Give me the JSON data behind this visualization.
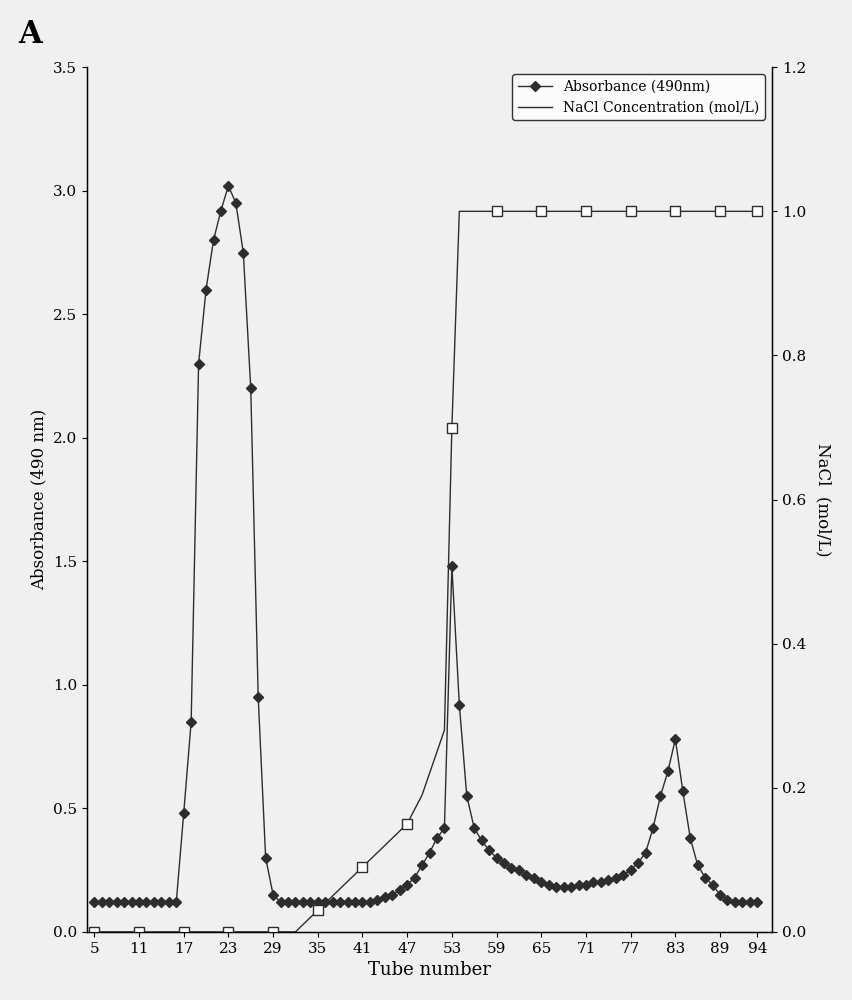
{
  "title_label": "A",
  "xlabel": "Tube number",
  "ylabel_left": "Absorbance (490 nm)",
  "ylabel_right": "NaCl  (mol/L)",
  "legend1": "Absorbance (490nm)",
  "legend2": "NaCl Concentration (mol/L)",
  "xticks": [
    5,
    11,
    17,
    23,
    29,
    35,
    41,
    47,
    53,
    59,
    65,
    71,
    77,
    83,
    89,
    94
  ],
  "ylim_left": [
    0,
    3.5
  ],
  "ylim_right": [
    0.0,
    1.2
  ],
  "yticks_left": [
    0.0,
    0.5,
    1.0,
    1.5,
    2.0,
    2.5,
    3.0,
    3.5
  ],
  "yticks_right": [
    0.0,
    0.2,
    0.4,
    0.6,
    0.8,
    1.0,
    1.2
  ],
  "absorbance_x": [
    5,
    6,
    7,
    8,
    9,
    10,
    11,
    12,
    13,
    14,
    15,
    16,
    17,
    18,
    19,
    20,
    21,
    22,
    23,
    24,
    25,
    26,
    27,
    28,
    29,
    30,
    31,
    32,
    33,
    34,
    35,
    36,
    37,
    38,
    39,
    40,
    41,
    42,
    43,
    44,
    45,
    46,
    47,
    48,
    49,
    50,
    51,
    52,
    53,
    54,
    55,
    56,
    57,
    58,
    59,
    60,
    61,
    62,
    63,
    64,
    65,
    66,
    67,
    68,
    69,
    70,
    71,
    72,
    73,
    74,
    75,
    76,
    77,
    78,
    79,
    80,
    81,
    82,
    83,
    84,
    85,
    86,
    87,
    88,
    89,
    90,
    91,
    92,
    93,
    94
  ],
  "absorbance_y": [
    0.12,
    0.12,
    0.12,
    0.12,
    0.12,
    0.12,
    0.12,
    0.12,
    0.12,
    0.12,
    0.12,
    0.12,
    0.48,
    0.85,
    2.3,
    2.6,
    2.8,
    2.92,
    3.02,
    2.95,
    2.75,
    2.2,
    0.95,
    0.3,
    0.15,
    0.12,
    0.12,
    0.12,
    0.12,
    0.12,
    0.12,
    0.12,
    0.12,
    0.12,
    0.12,
    0.12,
    0.12,
    0.12,
    0.13,
    0.14,
    0.15,
    0.17,
    0.19,
    0.22,
    0.27,
    0.32,
    0.38,
    0.42,
    1.48,
    0.92,
    0.55,
    0.42,
    0.37,
    0.33,
    0.3,
    0.28,
    0.26,
    0.25,
    0.23,
    0.22,
    0.2,
    0.19,
    0.18,
    0.18,
    0.18,
    0.19,
    0.19,
    0.2,
    0.2,
    0.21,
    0.22,
    0.23,
    0.25,
    0.28,
    0.32,
    0.42,
    0.55,
    0.65,
    0.78,
    0.57,
    0.38,
    0.27,
    0.22,
    0.19,
    0.15,
    0.13,
    0.12,
    0.12,
    0.12,
    0.12
  ],
  "nacl_x": [
    5,
    6,
    7,
    8,
    9,
    10,
    11,
    12,
    13,
    14,
    15,
    16,
    17,
    18,
    19,
    20,
    21,
    22,
    23,
    24,
    25,
    26,
    27,
    28,
    29,
    30,
    31,
    32,
    33,
    34,
    35,
    36,
    37,
    38,
    39,
    40,
    41,
    42,
    43,
    44,
    45,
    46,
    47,
    48,
    49,
    50,
    51,
    52,
    53,
    54,
    55,
    56,
    57,
    58,
    59,
    60,
    61,
    62,
    63,
    64,
    65,
    66,
    67,
    68,
    69,
    70,
    71,
    72,
    73,
    74,
    75,
    76,
    77,
    78,
    79,
    80,
    81,
    82,
    83,
    84,
    85,
    86,
    87,
    88,
    89,
    90,
    91,
    92,
    93,
    94
  ],
  "nacl_y": [
    0.0,
    0.0,
    0.0,
    0.0,
    0.0,
    0.0,
    0.0,
    0.0,
    0.0,
    0.0,
    0.0,
    0.0,
    0.0,
    0.0,
    0.0,
    0.0,
    0.0,
    0.0,
    0.0,
    0.0,
    0.0,
    0.0,
    0.0,
    0.0,
    0.0,
    0.0,
    0.0,
    0.0,
    0.01,
    0.02,
    0.03,
    0.04,
    0.05,
    0.06,
    0.07,
    0.08,
    0.09,
    0.1,
    0.11,
    0.12,
    0.13,
    0.14,
    0.15,
    0.17,
    0.19,
    0.22,
    0.25,
    0.28,
    0.7,
    1.0,
    1.0,
    1.0,
    1.0,
    1.0,
    1.0,
    1.0,
    1.0,
    1.0,
    1.0,
    1.0,
    1.0,
    1.0,
    1.0,
    1.0,
    1.0,
    1.0,
    1.0,
    1.0,
    1.0,
    1.0,
    1.0,
    1.0,
    1.0,
    1.0,
    1.0,
    1.0,
    1.0,
    1.0,
    1.0,
    1.0,
    1.0,
    1.0,
    1.0,
    1.0,
    1.0,
    1.0,
    1.0,
    1.0,
    1.0,
    1.0
  ],
  "nacl_marker_x": [
    5,
    11,
    17,
    23,
    29,
    35,
    41,
    47,
    53,
    59,
    65,
    71,
    77,
    83,
    89,
    94
  ],
  "nacl_marker_y": [
    0.0,
    0.0,
    0.0,
    0.0,
    0.0,
    0.03,
    0.09,
    0.15,
    0.7,
    1.0,
    1.0,
    1.0,
    1.0,
    1.0,
    1.0,
    1.0
  ],
  "line_color": "#2d2d2d",
  "bg_color": "#f0f0f0",
  "marker_abs": "D",
  "marker_nacl": "s"
}
